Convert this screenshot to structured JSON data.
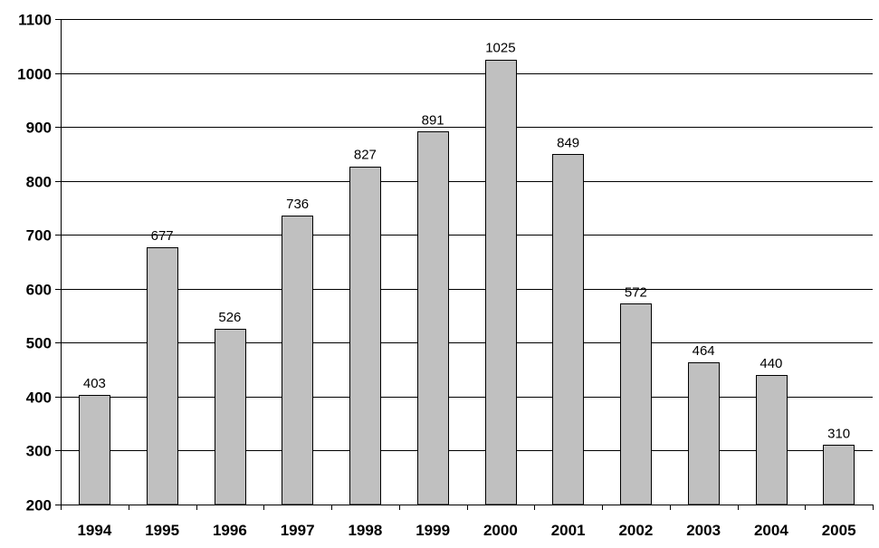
{
  "chart_data": {
    "type": "bar",
    "title": "",
    "xlabel": "",
    "ylabel": "",
    "categories": [
      "1994",
      "1995",
      "1996",
      "1997",
      "1998",
      "1999",
      "2000",
      "2001",
      "2002",
      "2003",
      "2004",
      "2005"
    ],
    "values": [
      403,
      677,
      526,
      736,
      827,
      891,
      1025,
      849,
      572,
      464,
      440,
      310
    ],
    "data_labels": [
      "403",
      "677",
      "526",
      "736",
      "827",
      "891",
      "1025",
      "849",
      "572",
      "464",
      "440",
      "310"
    ],
    "ylim": [
      200,
      1100
    ],
    "y_ticks": [
      200,
      300,
      400,
      500,
      600,
      700,
      800,
      900,
      1000,
      1100
    ],
    "y_tick_labels": [
      "200",
      "300",
      "400",
      "500",
      "600",
      "700",
      "800",
      "900",
      "1000",
      "1100"
    ],
    "grid": true,
    "legend": "none",
    "colors": {
      "bar_fill": "#c0c0c0",
      "bar_stroke": "#000000",
      "grid": "#000000",
      "axis": "#000000",
      "background": "#ffffff"
    }
  }
}
